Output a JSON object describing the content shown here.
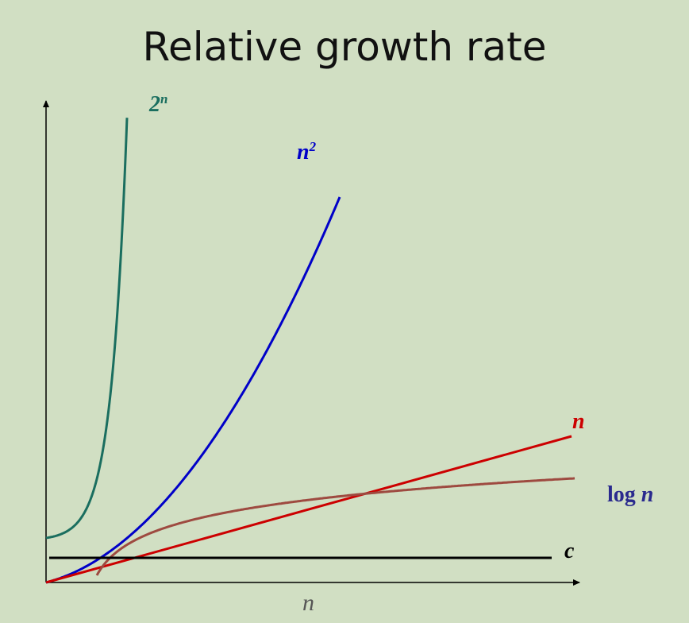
{
  "chart_data": {
    "type": "line",
    "title": "Relative growth rate",
    "xlabel": "n",
    "ylabel": "",
    "axis_ticks": false,
    "grid": false,
    "series": [
      {
        "name": "2",
        "superscript": "n",
        "function": "exponential",
        "color": "#1a6e5f"
      },
      {
        "name": "n",
        "superscript": "2",
        "function": "quadratic",
        "color": "#0000c8"
      },
      {
        "name": "n",
        "function": "linear",
        "color": "#cc0000"
      },
      {
        "name": "log",
        "name_suffix": "n",
        "function": "logarithmic",
        "color": "#9e4a40"
      },
      {
        "name": "c",
        "function": "constant",
        "color": "#000000"
      }
    ]
  }
}
